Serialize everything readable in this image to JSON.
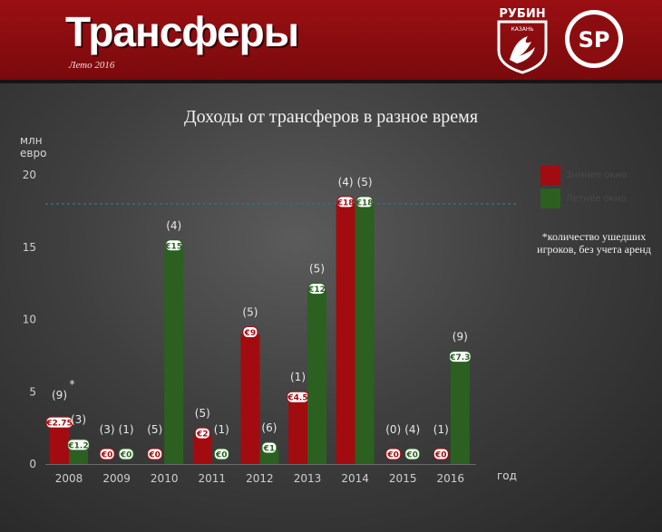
{
  "header": {
    "title": "Трансферы",
    "subtitle": "Лето 2016",
    "club_logo_text": "РУБИН",
    "club_logo_subtext": "КАЗАНЬ",
    "sp_logo_text": "SP"
  },
  "colors": {
    "winter": "#a20c10",
    "summer": "#2b6020",
    "banner": "#8b0d10",
    "dashed_line": "#2f6f86"
  },
  "chart_data": {
    "type": "bar",
    "title": "Доходы от трансферов в разное время",
    "ylabel": "млн евро",
    "xlabel": "год",
    "ylim": [
      0,
      20
    ],
    "yticks": [
      0,
      5,
      10,
      15,
      20
    ],
    "grid": false,
    "legend_position": "top-right",
    "categories": [
      "2008",
      "2009",
      "2010",
      "2011",
      "2012",
      "2013",
      "2014",
      "2015",
      "2016"
    ],
    "series": [
      {
        "name": "Зимнее окно",
        "values": [
          2.75,
          0,
          0,
          2,
          9,
          4.5,
          18,
          0,
          0
        ],
        "labels": [
          "€2.75",
          "€0",
          "€0",
          "€2",
          "€9",
          "€4.5",
          "€18",
          "€0",
          "€0"
        ],
        "players": [
          "(9)",
          "(3)",
          "(5)",
          "(5)",
          "(5)",
          "(1)",
          "(4)",
          "(0)",
          "(1)"
        ]
      },
      {
        "name": "Летнее окно",
        "values": [
          1.2,
          0,
          15,
          0,
          1,
          12,
          18,
          0,
          7.3
        ],
        "labels": [
          "€1.2",
          "€0",
          "€15",
          "€0",
          "€1",
          "€12",
          "€18",
          "€0",
          "€7.3"
        ],
        "players": [
          "(3)",
          "(1)",
          "(4)",
          "(1)",
          "(6)",
          "(5)",
          "(5)",
          "(4)",
          "(9)"
        ]
      }
    ],
    "reference_line": 18,
    "annotation_marker": "*",
    "note": "*количество ушедших игроков, без учета аренд"
  }
}
